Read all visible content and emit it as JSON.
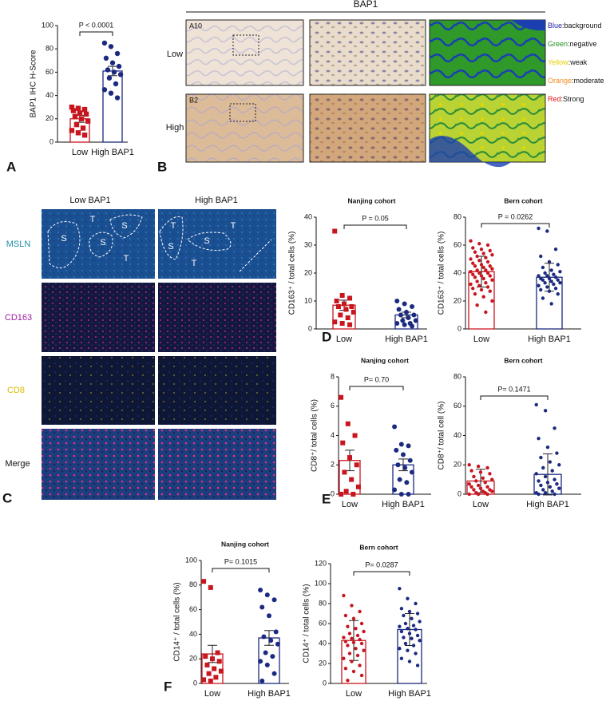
{
  "panel_letters": [
    "A",
    "B",
    "C",
    "D",
    "E",
    "F"
  ],
  "panel_b": {
    "header": "BAP1",
    "rows": [
      "Low",
      "High"
    ],
    "sample_ids": [
      "A10",
      "B2"
    ],
    "legend": [
      {
        "key": "Blue",
        "desc": ":background",
        "color": "#1f23a8"
      },
      {
        "key": "Green",
        "desc": ":negative",
        "color": "#1d8f1d"
      },
      {
        "key": "Yellow",
        "desc": ":weak",
        "color": "#e8cf00"
      },
      {
        "key": "Orange",
        "desc": ":moderate",
        "color": "#f08a1c"
      },
      {
        "key": "Red",
        "desc": ":Strong",
        "color": "#e0120f"
      }
    ]
  },
  "panel_c": {
    "columns": [
      "Low BAP1",
      "High BAP1"
    ],
    "rows": [
      "MSLN",
      "CD163",
      "CD8",
      "Merge"
    ],
    "row_colors": [
      "#1f8fa6",
      "#a0209e",
      "#d6c000",
      "#111111"
    ],
    "region_labels": [
      "S",
      "S",
      "S",
      "T",
      "T",
      "S",
      "S",
      "T",
      "T",
      "T"
    ]
  },
  "chart_data": [
    {
      "type": "dotbar",
      "y_label": "BAP1 IHC H-Score",
      "categories": [
        "Low",
        "High BAP1"
      ],
      "colors": [
        "#c8161f",
        "#1b2a80"
      ],
      "markers": [
        "square",
        "circle"
      ],
      "means": [
        20,
        61
      ],
      "errors": [
        3,
        4
      ],
      "points": [
        [
          30,
          29,
          28,
          27,
          25,
          24,
          22,
          20,
          18,
          15,
          12,
          10,
          8,
          6
        ],
        [
          85,
          82,
          76,
          72,
          68,
          65,
          62,
          60,
          58,
          55,
          50,
          45,
          42,
          38
        ]
      ],
      "annotation": "P < 0.0001",
      "ylim": [
        0,
        100
      ],
      "yticks": [
        0,
        20,
        40,
        60,
        80,
        100
      ]
    },
    {
      "type": "dotbar",
      "title": "Nanjing cohort",
      "y_label": "CD163⁺ / total cells (%)",
      "categories": [
        "Low",
        "High BAP1"
      ],
      "colors": [
        "#c8161f",
        "#1b2a80"
      ],
      "markers": [
        "square",
        "circle"
      ],
      "means": [
        8.5,
        5
      ],
      "errors": [
        1.8,
        1
      ],
      "points": [
        [
          35,
          12,
          11,
          10,
          9,
          8,
          8,
          7,
          6,
          5,
          4,
          2.5,
          2,
          1.5
        ],
        [
          10,
          9,
          8,
          7,
          6,
          5,
          5,
          4,
          3,
          3,
          2,
          2,
          1.5,
          1
        ]
      ],
      "annotation": "P = 0.05",
      "ylim": [
        0,
        40
      ],
      "yticks": [
        0,
        10,
        20,
        30,
        40
      ]
    },
    {
      "type": "dotbar",
      "title": "Bern cohort",
      "y_label": "CD163⁺ / total cells (%)",
      "categories": [
        "Low",
        "High BAP1"
      ],
      "colors": [
        "#c8161f",
        "#1b2a80"
      ],
      "markers": [
        "circle",
        "circle"
      ],
      "means": [
        41,
        37
      ],
      "errors": [
        11,
        10
      ],
      "points": [
        [
          63,
          61,
          60,
          58,
          57,
          56,
          55,
          54,
          53,
          52,
          51,
          50,
          49,
          48,
          47,
          46,
          45,
          45,
          44,
          43,
          42,
          42,
          41,
          40,
          40,
          39,
          38,
          38,
          37,
          36,
          35,
          34,
          33,
          32,
          31,
          30,
          29,
          28,
          27,
          25,
          23,
          20,
          17,
          12
        ],
        [
          72,
          70,
          57,
          52,
          48,
          46,
          44,
          42,
          41,
          40,
          39,
          38,
          38,
          37,
          36,
          36,
          35,
          35,
          34,
          33,
          33,
          32,
          31,
          30,
          29,
          28,
          27,
          25,
          22,
          18
        ]
      ],
      "annotation": "P = 0.0262",
      "ylim": [
        0,
        80
      ],
      "yticks": [
        0,
        20,
        40,
        60,
        80
      ]
    },
    {
      "type": "dotbar",
      "title": "Nanjing cohort",
      "y_label": "CD8⁺/ total cells (%)",
      "categories": [
        "Low",
        "High BAP1"
      ],
      "colors": [
        "#c8161f",
        "#1b2a80"
      ],
      "markers": [
        "square",
        "circle"
      ],
      "means": [
        2.3,
        2.0
      ],
      "errors": [
        0.7,
        0.4
      ],
      "points": [
        [
          6.6,
          4.8,
          4.0,
          3.5,
          2.5,
          2.0,
          1.5,
          1.0,
          0.5,
          0.2,
          0,
          0
        ],
        [
          4.6,
          3.4,
          3.3,
          3.0,
          2.7,
          2.3,
          2.0,
          1.8,
          1.5,
          1.0,
          0.8,
          0.3,
          0,
          0
        ]
      ],
      "annotation": "P= 0.70",
      "ylim": [
        0,
        8
      ],
      "yticks": [
        0,
        2,
        4,
        6,
        8
      ]
    },
    {
      "type": "dotbar",
      "title": "Bern cohort",
      "y_label": "CD8⁺/ total cell (%)",
      "categories": [
        "Low",
        "High BAP1"
      ],
      "colors": [
        "#c8161f",
        "#1b2a80"
      ],
      "markers": [
        "circle",
        "circle"
      ],
      "means": [
        9,
        13.5
      ],
      "errors": [
        8,
        14
      ],
      "points": [
        [
          20,
          19,
          18,
          16,
          15,
          14,
          12,
          11,
          10,
          9,
          8,
          7,
          6,
          5,
          5,
          4,
          3,
          3,
          2,
          2,
          1,
          1,
          0,
          0,
          0
        ],
        [
          61,
          57,
          45,
          38,
          32,
          28,
          25,
          22,
          20,
          18,
          16,
          14,
          12,
          10,
          9,
          8,
          7,
          6,
          5,
          4,
          3,
          2,
          1,
          1,
          0,
          0
        ]
      ],
      "annotation": "P= 0.1471",
      "ylim": [
        0,
        80
      ],
      "yticks": [
        0,
        20,
        40,
        60,
        80
      ]
    },
    {
      "type": "dotbar",
      "title": "Nanjing cohort",
      "y_label": "CD14⁺ / total cells (%)",
      "categories": [
        "Low",
        "High BAP1"
      ],
      "colors": [
        "#c8161f",
        "#1b2a80"
      ],
      "markers": [
        "square",
        "circle"
      ],
      "means": [
        24,
        37
      ],
      "errors": [
        7,
        6
      ],
      "points": [
        [
          83,
          78,
          25,
          22,
          20,
          18,
          15,
          12,
          10,
          8,
          5,
          3,
          2
        ],
        [
          76,
          72,
          68,
          62,
          55,
          42,
          38,
          35,
          32,
          25,
          22,
          18,
          15,
          8,
          2
        ]
      ],
      "annotation": "P= 0.1015",
      "ylim": [
        0,
        100
      ],
      "yticks": [
        0,
        20,
        40,
        60,
        80,
        100
      ]
    },
    {
      "type": "dotbar",
      "title": "Bern cohort",
      "y_label": "CD14⁺ / total cells (%)",
      "categories": [
        "Low",
        "High BAP1"
      ],
      "colors": [
        "#c8161f",
        "#1b2a80"
      ],
      "markers": [
        "circle",
        "circle"
      ],
      "means": [
        43,
        54
      ],
      "errors": [
        20,
        16
      ],
      "points": [
        [
          88,
          78,
          72,
          68,
          65,
          60,
          57,
          55,
          52,
          50,
          48,
          46,
          45,
          44,
          42,
          41,
          40,
          38,
          35,
          33,
          30,
          28,
          25,
          22,
          18,
          15,
          12,
          8,
          3
        ],
        [
          95,
          85,
          80,
          75,
          72,
          70,
          68,
          65,
          62,
          60,
          58,
          57,
          55,
          54,
          52,
          50,
          48,
          46,
          45,
          43,
          40,
          38,
          35,
          33,
          30,
          25,
          22,
          18
        ]
      ],
      "annotation": "P= 0.0287",
      "ylim": [
        0,
        120
      ],
      "yticks": [
        0,
        20,
        40,
        60,
        80,
        100,
        120
      ]
    }
  ]
}
